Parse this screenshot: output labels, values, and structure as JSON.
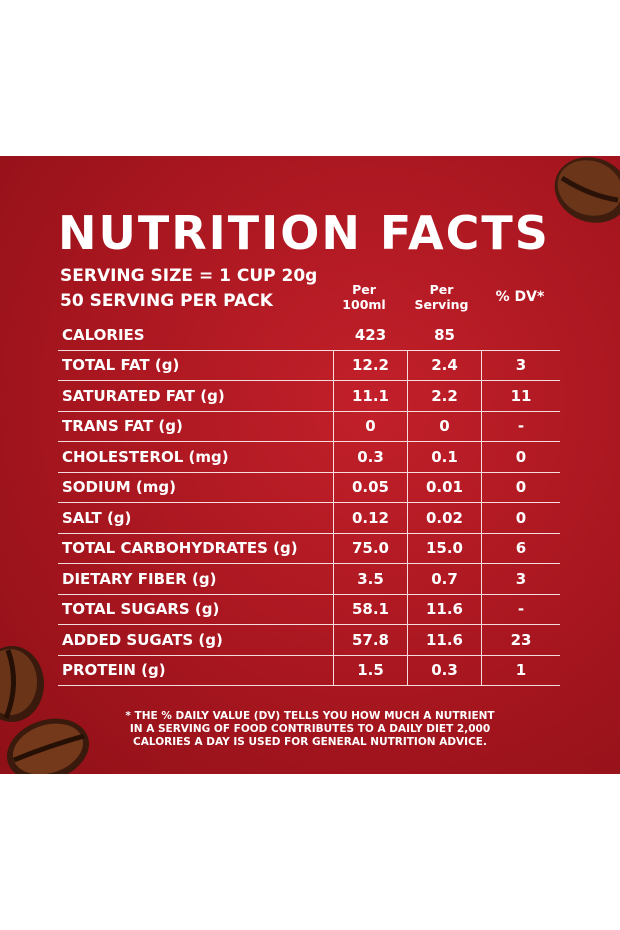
{
  "title": "NUTRITION FACTS",
  "serving_size": "SERVING SIZE = 1 CUP 20g",
  "servings_per_pack": "50 SERVING PER PACK",
  "columns": {
    "per100_line1": "Per",
    "per100_line2": "100ml",
    "perserving_line1": "Per",
    "perserving_line2": "Serving",
    "dv": "% DV*"
  },
  "rows": [
    {
      "label": "CALORIES",
      "per100": "423",
      "perserving": "85",
      "dv": ""
    },
    {
      "label": "TOTAL FAT (g)",
      "per100": "12.2",
      "perserving": "2.4",
      "dv": "3"
    },
    {
      "label": "SATURATED FAT (g)",
      "per100": "11.1",
      "perserving": "2.2",
      "dv": "11"
    },
    {
      "label": "TRANS FAT (g)",
      "per100": "0",
      "perserving": "0",
      "dv": "-"
    },
    {
      "label": "CHOLESTEROL (mg)",
      "per100": "0.3",
      "perserving": "0.1",
      "dv": "0"
    },
    {
      "label": "SODIUM (mg)",
      "per100": "0.05",
      "perserving": "0.01",
      "dv": "0"
    },
    {
      "label": "SALT (g)",
      "per100": "0.12",
      "perserving": "0.02",
      "dv": "0"
    },
    {
      "label": "TOTAL CARBOHYDRATES (g)",
      "per100": "75.0",
      "perserving": "15.0",
      "dv": "6"
    },
    {
      "label": "DIETARY FIBER (g)",
      "per100": "3.5",
      "perserving": "0.7",
      "dv": "3"
    },
    {
      "label": "TOTAL SUGARS (g)",
      "per100": "58.1",
      "perserving": "11.6",
      "dv": "-"
    },
    {
      "label": "ADDED SUGATS (g)",
      "per100": "57.8",
      "perserving": "11.6",
      "dv": "23"
    },
    {
      "label": "PROTEIN (g)",
      "per100": "1.5",
      "perserving": "0.3",
      "dv": "1"
    }
  ],
  "footnote": {
    "line1": "* THE % DAILY VALUE (DV) TELLS YOU HOW MUCH A NUTRIENT",
    "line2": "IN A SERVING OF FOOD CONTRIBUTES TO A DAILY DIET 2,000",
    "line3": "CALORIES A DAY IS USED FOR GENERAL NUTRITION ADVICE."
  },
  "colors": {
    "panel": "#a8161f",
    "text": "#ffffff",
    "bean": "#4a2414"
  },
  "icons": [
    "coffee-bean-icon"
  ]
}
